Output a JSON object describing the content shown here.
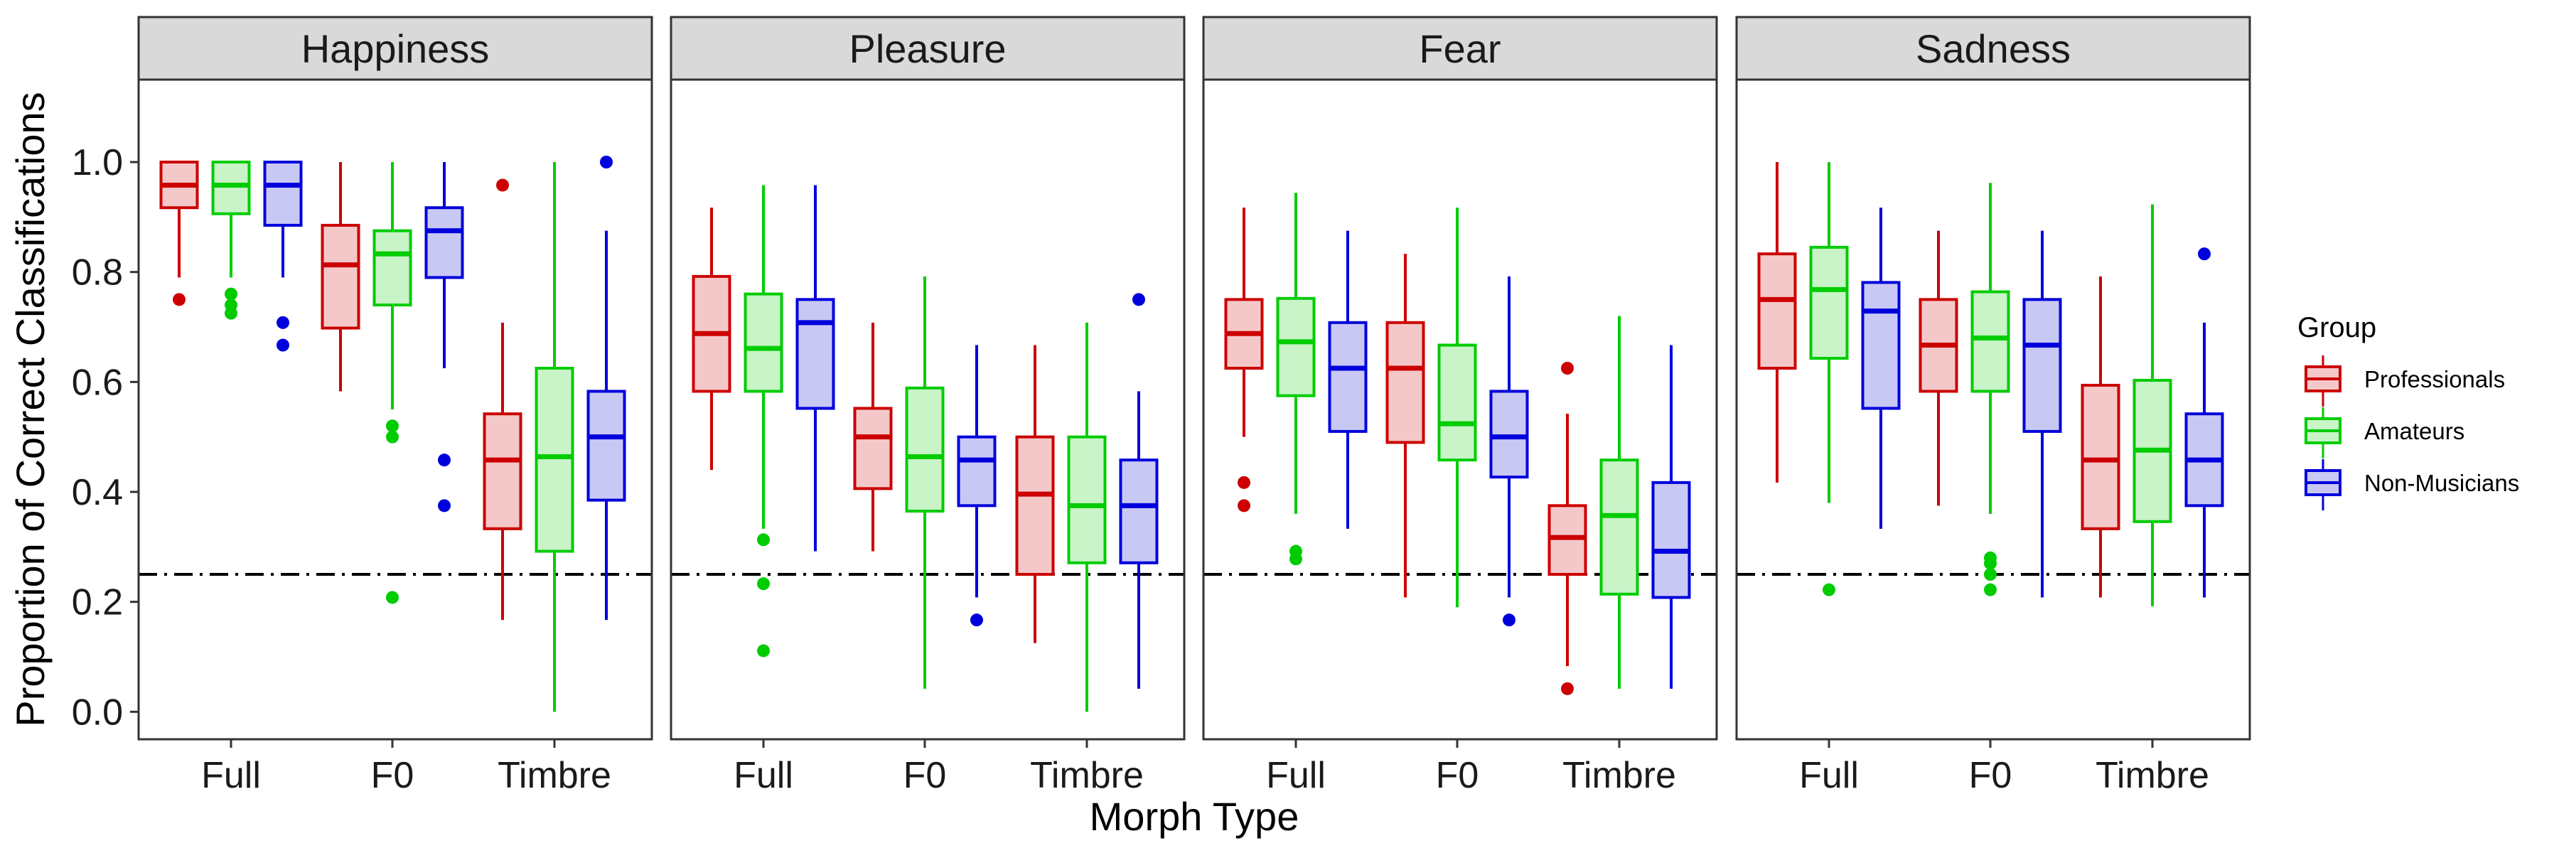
{
  "chart_data": {
    "type": "boxplot",
    "xlabel": "Morph Type",
    "ylabel": "Proportion of Correct Classifications",
    "ylim": [
      -0.05,
      1.15
    ],
    "yticks": [
      0.0,
      0.2,
      0.4,
      0.6,
      0.8,
      1.0
    ],
    "ytick_labels": [
      "0.0",
      "0.2",
      "0.4",
      "0.6",
      "0.8",
      "1.0"
    ],
    "chance_line": 0.25,
    "categories": [
      "Full",
      "F0",
      "Timbre"
    ],
    "legend": {
      "title": "Group",
      "placement": "right",
      "entries": [
        {
          "name": "Professionals",
          "stroke": "#cc0000",
          "fill": "#f4c8c8"
        },
        {
          "name": "Amateurs",
          "stroke": "#00cc00",
          "fill": "#c8f4c8"
        },
        {
          "name": "Non-Musicians",
          "stroke": "#0000dd",
          "fill": "#c8c8f4"
        }
      ]
    },
    "panels": [
      {
        "title": "Happiness",
        "boxes": [
          [
            {
              "min": 0.79,
              "q1": 0.917,
              "median": 0.958,
              "q3": 1.0,
              "max": 1.0,
              "outliers": [
                0.75
              ]
            },
            {
              "min": 0.79,
              "q1": 0.906,
              "median": 0.958,
              "q3": 1.0,
              "max": 1.0,
              "outliers": [
                0.76,
                0.74,
                0.725
              ]
            },
            {
              "min": 0.79,
              "q1": 0.885,
              "median": 0.958,
              "q3": 1.0,
              "max": 1.0,
              "outliers": [
                0.708,
                0.667
              ]
            }
          ],
          [
            {
              "min": 0.583,
              "q1": 0.698,
              "median": 0.813,
              "q3": 0.885,
              "max": 1.0,
              "outliers": []
            },
            {
              "min": 0.55,
              "q1": 0.74,
              "median": 0.833,
              "q3": 0.875,
              "max": 1.0,
              "outliers": [
                0.52,
                0.5,
                0.208
              ]
            },
            {
              "min": 0.625,
              "q1": 0.79,
              "median": 0.875,
              "q3": 0.917,
              "max": 1.0,
              "outliers": [
                0.458,
                0.375
              ]
            }
          ],
          [
            {
              "min": 0.167,
              "q1": 0.333,
              "median": 0.458,
              "q3": 0.542,
              "max": 0.708,
              "outliers": [
                0.958
              ]
            },
            {
              "min": 0.0,
              "q1": 0.292,
              "median": 0.464,
              "q3": 0.625,
              "max": 1.0,
              "outliers": []
            },
            {
              "min": 0.167,
              "q1": 0.385,
              "median": 0.5,
              "q3": 0.583,
              "max": 0.875,
              "outliers": [
                1.0
              ]
            }
          ]
        ]
      },
      {
        "title": "Pleasure",
        "boxes": [
          [
            {
              "min": 0.44,
              "q1": 0.583,
              "median": 0.688,
              "q3": 0.792,
              "max": 0.917,
              "outliers": []
            },
            {
              "min": 0.333,
              "q1": 0.583,
              "median": 0.661,
              "q3": 0.76,
              "max": 0.958,
              "outliers": [
                0.313,
                0.233,
                0.111
              ]
            },
            {
              "min": 0.292,
              "q1": 0.552,
              "median": 0.708,
              "q3": 0.75,
              "max": 0.958,
              "outliers": []
            }
          ],
          [
            {
              "min": 0.292,
              "q1": 0.406,
              "median": 0.5,
              "q3": 0.552,
              "max": 0.708,
              "outliers": []
            },
            {
              "min": 0.042,
              "q1": 0.365,
              "median": 0.464,
              "q3": 0.589,
              "max": 0.792,
              "outliers": []
            },
            {
              "min": 0.208,
              "q1": 0.375,
              "median": 0.458,
              "q3": 0.5,
              "max": 0.667,
              "outliers": [
                0.167
              ]
            }
          ],
          [
            {
              "min": 0.125,
              "q1": 0.25,
              "median": 0.396,
              "q3": 0.5,
              "max": 0.667,
              "outliers": []
            },
            {
              "min": 0.0,
              "q1": 0.271,
              "median": 0.375,
              "q3": 0.5,
              "max": 0.708,
              "outliers": []
            },
            {
              "min": 0.042,
              "q1": 0.271,
              "median": 0.375,
              "q3": 0.458,
              "max": 0.583,
              "outliers": [
                0.75
              ]
            }
          ]
        ]
      },
      {
        "title": "Fear",
        "boxes": [
          [
            {
              "min": 0.5,
              "q1": 0.625,
              "median": 0.688,
              "q3": 0.75,
              "max": 0.917,
              "outliers": [
                0.417,
                0.375
              ]
            },
            {
              "min": 0.36,
              "q1": 0.575,
              "median": 0.673,
              "q3": 0.752,
              "max": 0.944,
              "outliers": [
                0.292,
                0.278
              ]
            },
            {
              "min": 0.333,
              "q1": 0.51,
              "median": 0.625,
              "q3": 0.708,
              "max": 0.875,
              "outliers": []
            }
          ],
          [
            {
              "min": 0.208,
              "q1": 0.49,
              "median": 0.625,
              "q3": 0.708,
              "max": 0.833,
              "outliers": []
            },
            {
              "min": 0.19,
              "q1": 0.458,
              "median": 0.524,
              "q3": 0.667,
              "max": 0.917,
              "outliers": []
            },
            {
              "min": 0.208,
              "q1": 0.427,
              "median": 0.5,
              "q3": 0.583,
              "max": 0.792,
              "outliers": [
                0.167
              ]
            }
          ],
          [
            {
              "min": 0.083,
              "q1": 0.25,
              "median": 0.317,
              "q3": 0.375,
              "max": 0.542,
              "outliers": [
                0.625,
                0.042
              ]
            },
            {
              "min": 0.042,
              "q1": 0.214,
              "median": 0.357,
              "q3": 0.458,
              "max": 0.72,
              "outliers": []
            },
            {
              "min": 0.042,
              "q1": 0.208,
              "median": 0.292,
              "q3": 0.417,
              "max": 0.667,
              "outliers": []
            }
          ]
        ]
      },
      {
        "title": "Sadness",
        "boxes": [
          [
            {
              "min": 0.417,
              "q1": 0.625,
              "median": 0.75,
              "q3": 0.833,
              "max": 1.0,
              "outliers": []
            },
            {
              "min": 0.38,
              "q1": 0.643,
              "median": 0.768,
              "q3": 0.845,
              "max": 1.0,
              "outliers": [
                0.222
              ]
            },
            {
              "min": 0.333,
              "q1": 0.552,
              "median": 0.729,
              "q3": 0.781,
              "max": 0.917,
              "outliers": []
            }
          ],
          [
            {
              "min": 0.375,
              "q1": 0.583,
              "median": 0.667,
              "q3": 0.75,
              "max": 0.875,
              "outliers": []
            },
            {
              "min": 0.36,
              "q1": 0.583,
              "median": 0.68,
              "q3": 0.764,
              "max": 0.962,
              "outliers": [
                0.28,
                0.27,
                0.25,
                0.222
              ]
            },
            {
              "min": 0.208,
              "q1": 0.51,
              "median": 0.667,
              "q3": 0.75,
              "max": 0.875,
              "outliers": []
            }
          ],
          [
            {
              "min": 0.208,
              "q1": 0.333,
              "median": 0.458,
              "q3": 0.594,
              "max": 0.792,
              "outliers": []
            },
            {
              "min": 0.192,
              "q1": 0.346,
              "median": 0.476,
              "q3": 0.603,
              "max": 0.923,
              "outliers": []
            },
            {
              "min": 0.208,
              "q1": 0.375,
              "median": 0.458,
              "q3": 0.542,
              "max": 0.708,
              "outliers": [
                0.833
              ]
            }
          ]
        ]
      }
    ]
  }
}
